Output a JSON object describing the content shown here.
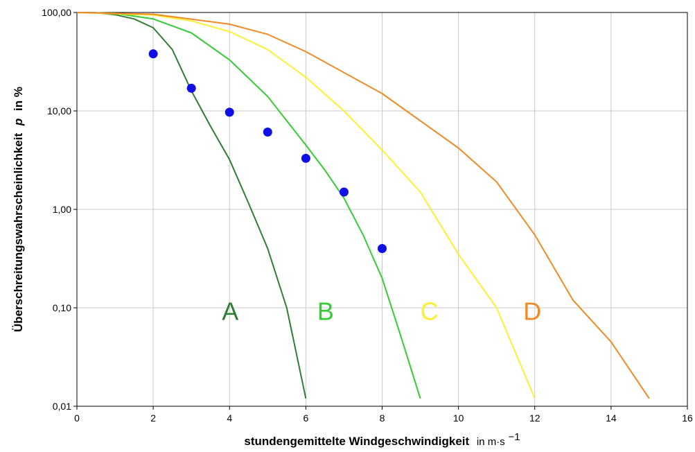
{
  "chart_data": {
    "type": "line",
    "xlabel": "stundengemittelte Windgeschwindigkeit",
    "xlabel_unit": "in m·s",
    "xlabel_unit_exp": "−1",
    "ylabel": "Überschreitungswahrscheinlichkeit",
    "ylabel_var": "p",
    "ylabel_unit": "in %",
    "xlim": [
      0,
      16
    ],
    "ylim": [
      0.01,
      100
    ],
    "y_scale": "log",
    "grid": true,
    "x_ticks": [
      {
        "value": 0,
        "label": "0"
      },
      {
        "value": 2,
        "label": "2"
      },
      {
        "value": 4,
        "label": "4"
      },
      {
        "value": 6,
        "label": "6"
      },
      {
        "value": 8,
        "label": "8"
      },
      {
        "value": 10,
        "label": "10"
      },
      {
        "value": 12,
        "label": "12"
      },
      {
        "value": 14,
        "label": "14"
      },
      {
        "value": 16,
        "label": "16"
      }
    ],
    "y_ticks": [
      {
        "value": 100,
        "label": "100,00"
      },
      {
        "value": 10,
        "label": "10,00"
      },
      {
        "value": 1,
        "label": "1,00"
      },
      {
        "value": 0.1,
        "label": "0,10"
      },
      {
        "value": 0.01,
        "label": "0,01"
      }
    ],
    "series": [
      {
        "name": "A",
        "color": "#2e7d32",
        "x": [
          0,
          0.5,
          1,
          1.5,
          2,
          2.5,
          3,
          3.5,
          4,
          4.5,
          5,
          5.5,
          6
        ],
        "y": [
          100,
          99.5,
          95,
          86,
          70,
          42,
          16,
          7,
          3.2,
          1.15,
          0.4,
          0.1,
          0.012
        ]
      },
      {
        "name": "B",
        "color": "#33cc33",
        "x": [
          0,
          1,
          2,
          3,
          4,
          5,
          6,
          6.5,
          7,
          7.5,
          8,
          8.5,
          9
        ],
        "y": [
          100,
          98,
          86,
          62,
          33,
          14,
          4.5,
          2.5,
          1.3,
          0.55,
          0.2,
          0.05,
          0.012
        ]
      },
      {
        "name": "C",
        "color": "#ffee33",
        "x": [
          0,
          2,
          3,
          4,
          5,
          6,
          7,
          8,
          9,
          10,
          11,
          12
        ],
        "y": [
          100,
          94,
          82,
          64,
          42,
          22,
          10,
          4,
          1.5,
          0.35,
          0.1,
          0.012
        ]
      },
      {
        "name": "D",
        "color": "#f08a24",
        "x": [
          0,
          2,
          4,
          5,
          6,
          8,
          10,
          11,
          12,
          13,
          14,
          15
        ],
        "y": [
          100,
          96,
          76,
          60,
          40,
          15,
          4.2,
          1.9,
          0.55,
          0.12,
          0.045,
          0.012
        ]
      }
    ],
    "points": {
      "color": "#1010e6",
      "x": [
        2,
        3,
        4,
        5,
        6,
        7,
        8
      ],
      "y": [
        38,
        17,
        9.7,
        6.1,
        3.3,
        1.5,
        0.4
      ]
    },
    "curve_labels": [
      {
        "text": "A",
        "color": "#2e7d32",
        "x": 3.8,
        "y": 0.075
      },
      {
        "text": "B",
        "color": "#33cc33",
        "x": 6.3,
        "y": 0.075
      },
      {
        "text": "C",
        "color": "#ffee33",
        "x": 9.0,
        "y": 0.075
      },
      {
        "text": "D",
        "color": "#f08a24",
        "x": 11.7,
        "y": 0.075
      }
    ]
  }
}
